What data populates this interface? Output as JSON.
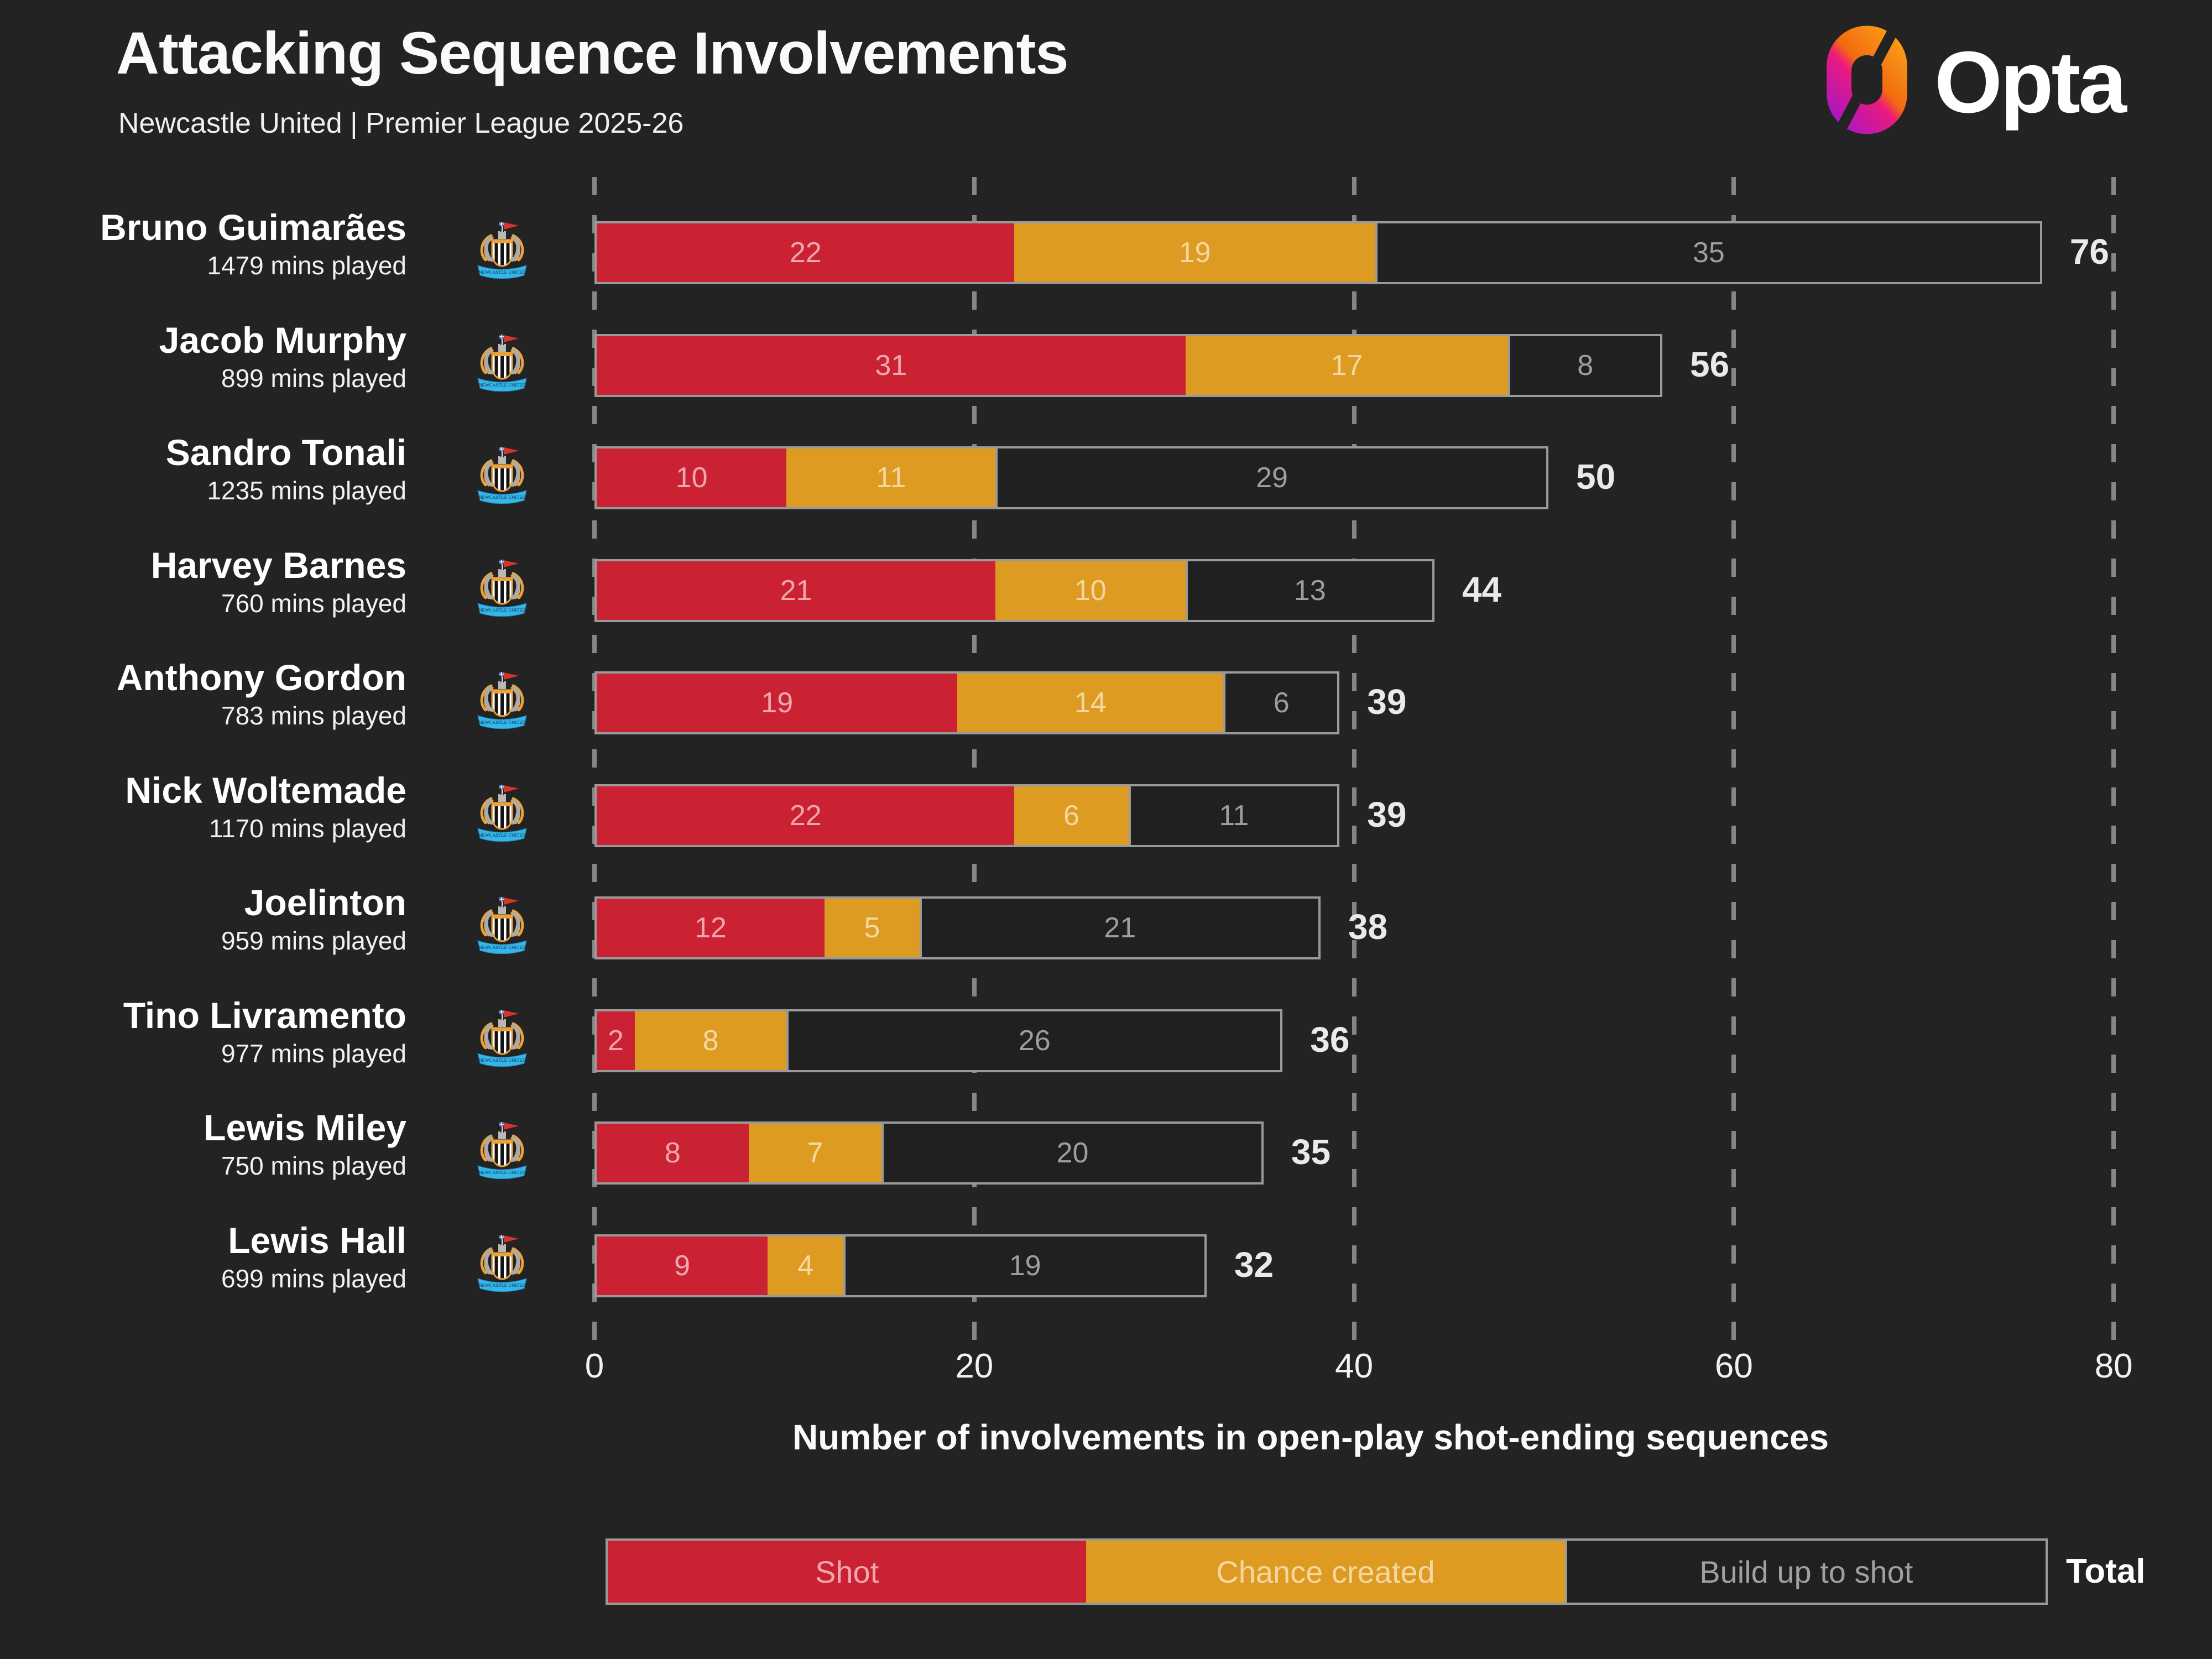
{
  "header": {
    "title": "Attacking Sequence Involvements",
    "subtitle": "Newcastle United | Premier League 2025-26",
    "brand": "Opta"
  },
  "chart_data": {
    "type": "bar",
    "stacked": true,
    "orientation": "horizontal",
    "title": "Attacking Sequence Involvements",
    "subtitle": "Newcastle United | Premier League 2025-26",
    "xlabel": "Number of involvements in open-play shot-ending sequences",
    "xlim": [
      0,
      80
    ],
    "xticks": [
      0,
      20,
      40,
      60,
      80
    ],
    "grid": "dashed-vertical",
    "legend_position": "bottom",
    "series": [
      "Shot",
      "Chance created",
      "Build up to shot"
    ],
    "players": [
      {
        "name": "Bruno Guimarães",
        "mins": "1479 mins played",
        "shot": 22,
        "chance_created": 19,
        "build_up": 35,
        "total": 76
      },
      {
        "name": "Jacob Murphy",
        "mins": "899 mins played",
        "shot": 31,
        "chance_created": 17,
        "build_up": 8,
        "total": 56
      },
      {
        "name": "Sandro Tonali",
        "mins": "1235 mins played",
        "shot": 10,
        "chance_created": 11,
        "build_up": 29,
        "total": 50
      },
      {
        "name": "Harvey Barnes",
        "mins": "760 mins played",
        "shot": 21,
        "chance_created": 10,
        "build_up": 13,
        "total": 44
      },
      {
        "name": "Anthony Gordon",
        "mins": "783 mins played",
        "shot": 19,
        "chance_created": 14,
        "build_up": 6,
        "total": 39
      },
      {
        "name": "Nick Woltemade",
        "mins": "1170 mins played",
        "shot": 22,
        "chance_created": 6,
        "build_up": 11,
        "total": 39
      },
      {
        "name": "Joelinton",
        "mins": "959 mins played",
        "shot": 12,
        "chance_created": 5,
        "build_up": 21,
        "total": 38
      },
      {
        "name": "Tino Livramento",
        "mins": "977 mins played",
        "shot": 2,
        "chance_created": 8,
        "build_up": 26,
        "total": 36
      },
      {
        "name": "Lewis Miley",
        "mins": "750 mins played",
        "shot": 8,
        "chance_created": 7,
        "build_up": 20,
        "total": 35
      },
      {
        "name": "Lewis Hall",
        "mins": "699 mins played",
        "shot": 9,
        "chance_created": 4,
        "build_up": 19,
        "total": 32
      }
    ]
  },
  "legend": {
    "items": [
      {
        "label": "Shot",
        "color": "#cb2233"
      },
      {
        "label": "Chance created",
        "color": "#de9b22"
      },
      {
        "label": "Build up to shot",
        "color": "#202020"
      }
    ],
    "total_label": "Total"
  },
  "axis": {
    "ticks": [
      "0",
      "20",
      "40",
      "60",
      "80"
    ],
    "label": "Number of involvements in open-play shot-ending sequences"
  },
  "colors": {
    "background": "#232323",
    "shot": "#cb2233",
    "chance_created": "#de9b22",
    "build_up": "#202020",
    "bar_border": "#9a9a9a",
    "gridline": "#868686",
    "label_on_shot": "#f0a7af",
    "label_on_chance": "#f5d7a2",
    "label_on_build_up": "#9e9e9e",
    "total_value": "#eaeaea",
    "opta_gradient": [
      "#9516d6",
      "#ec1a7d",
      "#f26a10",
      "#fbab18"
    ]
  },
  "badge": {
    "club": "Newcastle United",
    "banner_text": "NEWCASTLE UNITED"
  }
}
